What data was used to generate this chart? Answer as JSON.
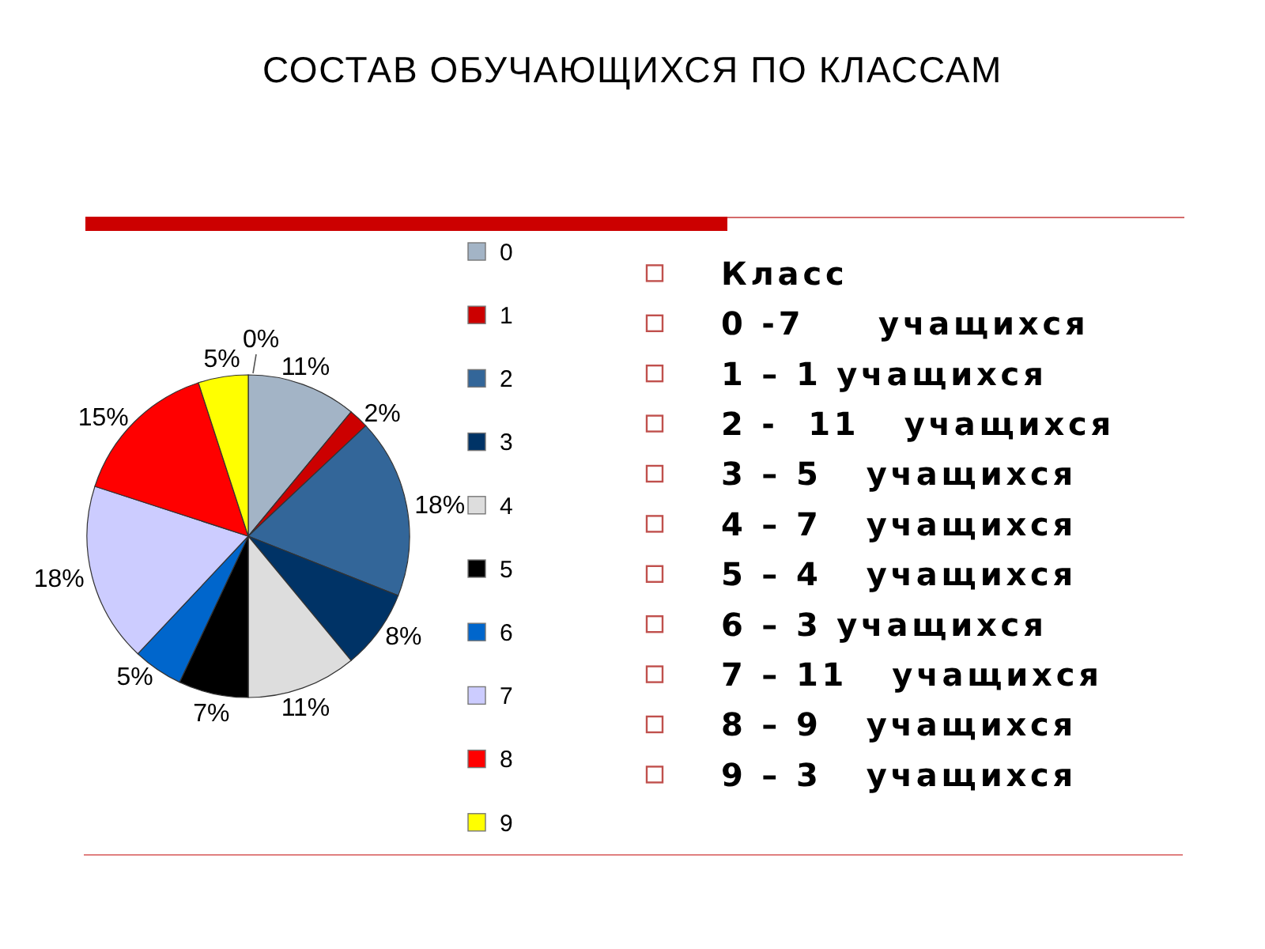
{
  "chart_data": {
    "type": "pie",
    "title": "СОСТАВ ОБУЧАЮЩИХСЯ ПО КЛАССАМ",
    "categories": [
      "0",
      "1",
      "2",
      "3",
      "4",
      "5",
      "6",
      "7",
      "8",
      "9"
    ],
    "values": [
      11,
      2,
      18,
      8,
      11,
      7,
      5,
      18,
      15,
      5
    ],
    "colors": [
      "#a3b4c6",
      "#cc0000",
      "#336699",
      "#003366",
      "#dddddd",
      "#000000",
      "#0066cc",
      "#ccccff",
      "#ff0000",
      "#ffff00"
    ],
    "value_labels": [
      "11%",
      "2%",
      "18%",
      "8%",
      "11%",
      "7%",
      "5%",
      "18%",
      "15%",
      "5%"
    ],
    "legend": "right",
    "annotations": [
      "0%",
      "Класс",
      "0 -7     учащихся",
      "1 – 1 учащихся",
      "2 -  11   учащихся",
      "3 – 5   учащихся",
      "4 – 7   учащихся",
      "5 – 4   учащихся",
      "6 – 3 учащихся",
      "7 – 11   учащихся",
      "8 – 9   учащихся",
      "9 – 3   учащихся"
    ]
  }
}
